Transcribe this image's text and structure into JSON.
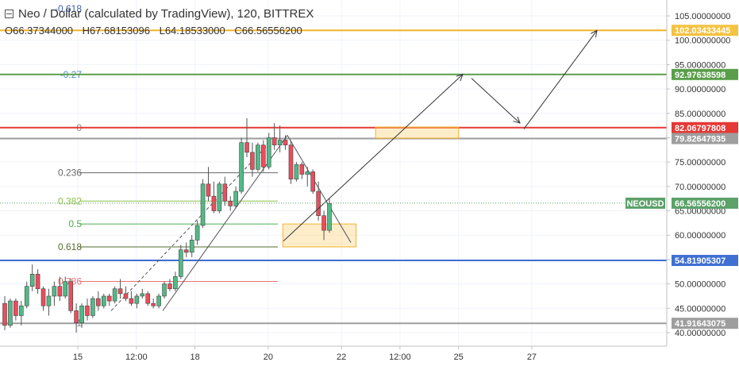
{
  "header": {
    "title": "Neo / Dollar (calculated by TradingView), 120, BITTREX",
    "ohlc": {
      "open": "O66.37344000",
      "high": "H67.68153096",
      "low": "L64.18533000",
      "close": "C66.56556200"
    }
  },
  "chart_data": {
    "type": "candlestick",
    "symbol": "NEOUSD",
    "last_price": "66.56556200",
    "ylim": [
      40,
      107
    ],
    "y_ticks": [
      {
        "value": 40,
        "label": "40.00000000"
      },
      {
        "value": 45,
        "label": "45.00000000"
      },
      {
        "value": 50,
        "label": "50.00000000"
      },
      {
        "value": 55,
        "label": "55.00000000"
      },
      {
        "value": 60,
        "label": "60.00000000"
      },
      {
        "value": 65,
        "label": "65.00000000"
      },
      {
        "value": 70,
        "label": "70.00000000"
      },
      {
        "value": 75,
        "label": "75.00000000"
      },
      {
        "value": 80,
        "label": "80.00000000"
      },
      {
        "value": 85,
        "label": "85.00000000"
      },
      {
        "value": 90,
        "label": "90.00000000"
      },
      {
        "value": 95,
        "label": "95.00000000"
      },
      {
        "value": 100,
        "label": "100.00000000"
      },
      {
        "value": 105,
        "label": "105.00000000"
      }
    ],
    "x_ticks": [
      {
        "slot": 0,
        "label": "15"
      },
      {
        "slot": 12,
        "label": "12:00"
      },
      {
        "slot": 24,
        "label": "18"
      },
      {
        "slot": 39,
        "label": "20"
      },
      {
        "slot": 54,
        "label": "22"
      },
      {
        "slot": 66,
        "label": "12:00"
      },
      {
        "slot": 78,
        "label": "25"
      },
      {
        "slot": 93,
        "label": "27"
      }
    ],
    "x_start_slot": -12,
    "x_end_slot": 95,
    "candles": [
      {
        "o": 46,
        "h": 47.5,
        "l": 40.5,
        "c": 41.5
      },
      {
        "o": 41.5,
        "h": 47,
        "l": 41,
        "c": 46.5
      },
      {
        "o": 46.5,
        "h": 47,
        "l": 42.5,
        "c": 43.5
      },
      {
        "o": 43.5,
        "h": 46.5,
        "l": 41.5,
        "c": 45.5
      },
      {
        "o": 45.5,
        "h": 50.5,
        "l": 45,
        "c": 49.5
      },
      {
        "o": 49.5,
        "h": 54,
        "l": 48.5,
        "c": 52
      },
      {
        "o": 52,
        "h": 53,
        "l": 48,
        "c": 49
      },
      {
        "o": 49,
        "h": 49.5,
        "l": 44.5,
        "c": 45.5
      },
      {
        "o": 45.5,
        "h": 49,
        "l": 43.5,
        "c": 47.5
      },
      {
        "o": 47.5,
        "h": 50.5,
        "l": 45.5,
        "c": 49.5
      },
      {
        "o": 49.5,
        "h": 51.5,
        "l": 46.5,
        "c": 47.5
      },
      {
        "o": 47.5,
        "h": 51.5,
        "l": 47,
        "c": 50.5
      },
      {
        "o": 50.5,
        "h": 51,
        "l": 44,
        "c": 44.5
      },
      {
        "o": 44.5,
        "h": 46,
        "l": 40,
        "c": 42
      },
      {
        "o": 42,
        "h": 46,
        "l": 41,
        "c": 45.5
      },
      {
        "o": 45.5,
        "h": 47,
        "l": 42.5,
        "c": 43.5
      },
      {
        "o": 43.5,
        "h": 47.5,
        "l": 43,
        "c": 47
      },
      {
        "o": 47,
        "h": 48.5,
        "l": 44.5,
        "c": 45.5
      },
      {
        "o": 45.5,
        "h": 48,
        "l": 45,
        "c": 47.5
      },
      {
        "o": 47.5,
        "h": 48,
        "l": 45.5,
        "c": 46.5
      },
      {
        "o": 46.5,
        "h": 49.5,
        "l": 46,
        "c": 49
      },
      {
        "o": 49,
        "h": 51,
        "l": 47,
        "c": 48
      },
      {
        "o": 48,
        "h": 49.5,
        "l": 46.5,
        "c": 47
      },
      {
        "o": 47,
        "h": 48.5,
        "l": 45.5,
        "c": 46
      },
      {
        "o": 46,
        "h": 48,
        "l": 45,
        "c": 47.5
      },
      {
        "o": 47.5,
        "h": 49,
        "l": 47,
        "c": 48
      },
      {
        "o": 48,
        "h": 48.5,
        "l": 45.5,
        "c": 46
      },
      {
        "o": 46,
        "h": 47,
        "l": 45,
        "c": 45.5
      },
      {
        "o": 45.5,
        "h": 48,
        "l": 45,
        "c": 47.5
      },
      {
        "o": 47.5,
        "h": 50.5,
        "l": 47,
        "c": 50
      },
      {
        "o": 50,
        "h": 51,
        "l": 48.5,
        "c": 49
      },
      {
        "o": 49,
        "h": 52.5,
        "l": 48.5,
        "c": 51.5
      },
      {
        "o": 51.5,
        "h": 58,
        "l": 51,
        "c": 57
      },
      {
        "o": 57,
        "h": 58.5,
        "l": 55.5,
        "c": 56.5
      },
      {
        "o": 56.5,
        "h": 60,
        "l": 55.5,
        "c": 59
      },
      {
        "o": 59,
        "h": 63,
        "l": 58,
        "c": 62
      },
      {
        "o": 62,
        "h": 71.5,
        "l": 61.5,
        "c": 70.5
      },
      {
        "o": 70.5,
        "h": 74,
        "l": 67,
        "c": 68
      },
      {
        "o": 68,
        "h": 71,
        "l": 64.5,
        "c": 65
      },
      {
        "o": 65,
        "h": 71,
        "l": 64.5,
        "c": 70.5
      },
      {
        "o": 70.5,
        "h": 72,
        "l": 66,
        "c": 67
      },
      {
        "o": 67,
        "h": 68,
        "l": 65,
        "c": 66
      },
      {
        "o": 66,
        "h": 70,
        "l": 65.5,
        "c": 69
      },
      {
        "o": 69,
        "h": 80,
        "l": 68.5,
        "c": 79
      },
      {
        "o": 79,
        "h": 84,
        "l": 76,
        "c": 77
      },
      {
        "o": 77,
        "h": 79,
        "l": 72,
        "c": 73.5
      },
      {
        "o": 73.5,
        "h": 79,
        "l": 73,
        "c": 78.5
      },
      {
        "o": 78.5,
        "h": 79.5,
        "l": 73,
        "c": 74
      },
      {
        "o": 74,
        "h": 81,
        "l": 73.5,
        "c": 80
      },
      {
        "o": 80,
        "h": 83,
        "l": 77.5,
        "c": 78.5
      },
      {
        "o": 78.5,
        "h": 82.5,
        "l": 77,
        "c": 79.5
      },
      {
        "o": 79.5,
        "h": 80.5,
        "l": 77.5,
        "c": 78.5
      },
      {
        "o": 78.5,
        "h": 79.5,
        "l": 70.5,
        "c": 71.5
      },
      {
        "o": 71.5,
        "h": 75,
        "l": 71,
        "c": 74.5
      },
      {
        "o": 74.5,
        "h": 75,
        "l": 71.5,
        "c": 72.5
      },
      {
        "o": 72.5,
        "h": 74,
        "l": 70,
        "c": 73
      },
      {
        "o": 73,
        "h": 73.5,
        "l": 68.5,
        "c": 69
      },
      {
        "o": 69,
        "h": 71,
        "l": 63,
        "c": 64
      },
      {
        "o": 64,
        "h": 65,
        "l": 59,
        "c": 61
      },
      {
        "o": 61,
        "h": 67.5,
        "l": 60.5,
        "c": 66.5
      }
    ],
    "fib_levels": [
      {
        "label": "-0.618",
        "value": 106.5,
        "color": "#3f5eb3"
      },
      {
        "label": "-0.27",
        "value": 92.97,
        "color": "#4f8dbd"
      },
      {
        "label": "0",
        "value": 82.07,
        "color": "#888888"
      },
      {
        "label": "0.236",
        "value": 72.8,
        "color": "#666666"
      },
      {
        "label": "0.382",
        "value": 67.0,
        "color": "#8bc34a"
      },
      {
        "label": "0.5",
        "value": 62.3,
        "color": "#4caf50"
      },
      {
        "label": "0.618",
        "value": 57.6,
        "color": "#556b2f"
      },
      {
        "label": "0.786",
        "value": 50.5,
        "color": "#e57373"
      },
      {
        "label": "1",
        "value": 41.92,
        "color": "#888888"
      }
    ],
    "horizontal_lines": [
      {
        "value": 102.03433445,
        "label": "102.03433445",
        "color": "#f0b429"
      },
      {
        "value": 92.97638598,
        "label": "92.97638598",
        "color": "#5a9e4a"
      },
      {
        "value": 82.06797808,
        "label": "82.06797808",
        "color": "#e53935"
      },
      {
        "value": 79.82647935,
        "label": "79.82647935",
        "color": "#9e9e9e"
      },
      {
        "value": 54.81905307,
        "label": "54.81905307",
        "color": "#3f6fd1"
      },
      {
        "value": 41.91643075,
        "label": "41.91643075",
        "color": "#9e9e9e"
      }
    ],
    "zones": [
      {
        "from_slot": 42,
        "to_slot": 57,
        "low": 57.6,
        "high": 62.3
      },
      {
        "from_slot": 61,
        "to_slot": 78,
        "low": 79.9,
        "high": 82.2
      }
    ],
    "projection_path": [
      {
        "slot": 47,
        "value": 58.8
      },
      {
        "slot": 60,
        "value": 93
      },
      {
        "slot": 64,
        "value": 91
      },
      {
        "slot": 70,
        "value": 83
      },
      {
        "slot": 85,
        "value": 102
      }
    ],
    "colors": {
      "up": "#53b987",
      "down": "#eb4d5c",
      "wick": "#555555",
      "grid": "#f0f3fa",
      "axis_text": "#333333",
      "last_price_tag": "#5ba169"
    }
  }
}
